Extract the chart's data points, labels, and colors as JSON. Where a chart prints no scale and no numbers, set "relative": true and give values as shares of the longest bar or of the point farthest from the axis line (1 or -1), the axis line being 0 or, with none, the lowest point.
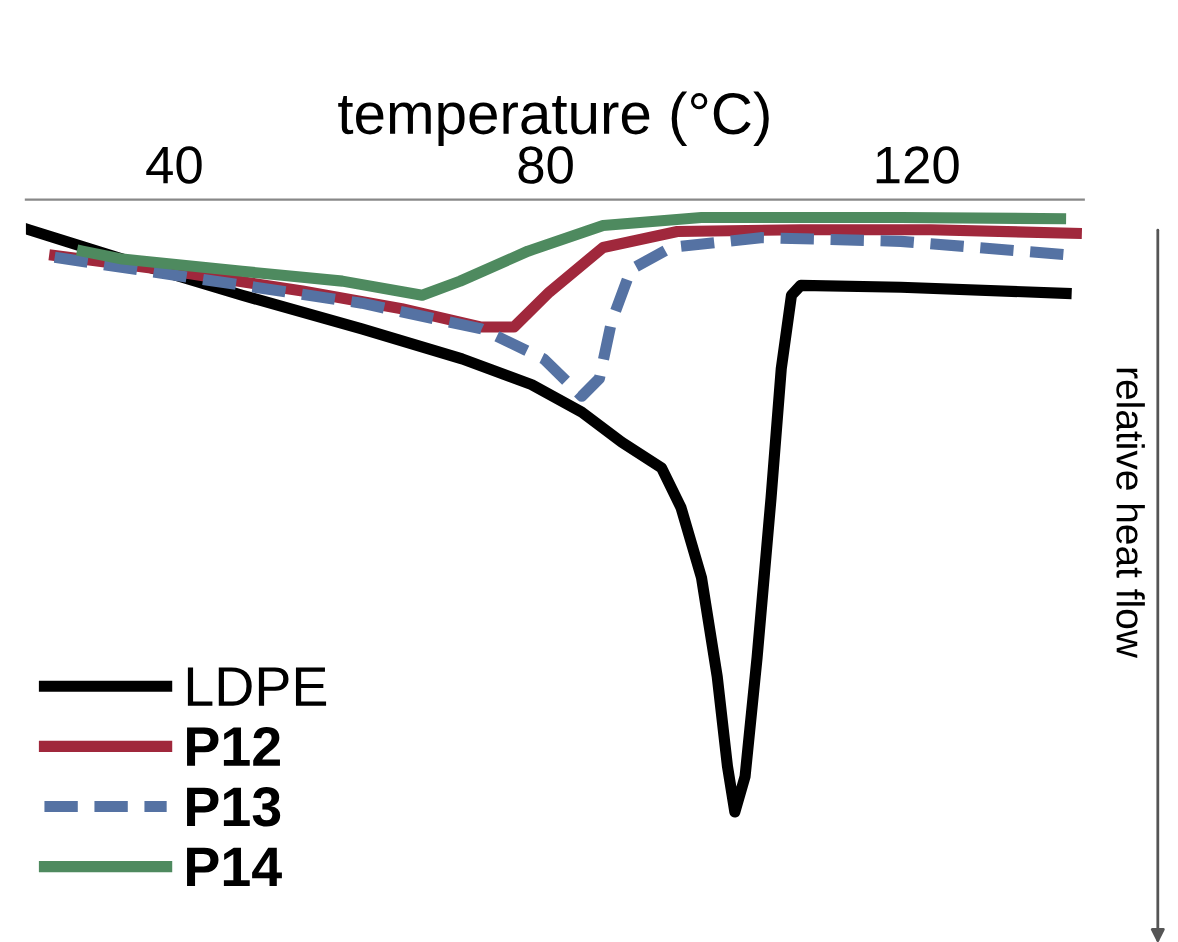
{
  "chart_data": {
    "type": "line",
    "xlabel": "temperature (°C)",
    "y2label": "relative heat flow",
    "relative": true,
    "xlim": [
      24,
      138
    ],
    "xticks": [
      40,
      80,
      120
    ],
    "tick_labels": "x",
    "grid": false,
    "legend": "bottom left",
    "series": [
      {
        "name": "LDPE",
        "color": "#000000",
        "line_style": "solid",
        "x": [
          24.3,
          34.4,
          47.3,
          60.2,
          71.0,
          78.5,
          83.9,
          88.2,
          92.5,
          94.6,
          96.8,
          98.5,
          99.6,
          100.4,
          101.5,
          102.8,
          104.3,
          105.4,
          106.5,
          107.5,
          118.3,
          136.1
        ],
        "values": [
          -0.049,
          -0.097,
          -0.156,
          -0.211,
          -0.26,
          -0.302,
          -0.347,
          -0.396,
          -0.438,
          -0.503,
          -0.617,
          -0.779,
          -0.925,
          -1,
          -0.942,
          -0.747,
          -0.487,
          -0.276,
          -0.156,
          -0.14,
          -0.143,
          -0.153
        ]
      },
      {
        "name": "P12",
        "color": "#a0283c",
        "line_style": "solid",
        "x": [
          27.1,
          38.7,
          53.8,
          64.5,
          73.1,
          76.6,
          80.4,
          86.2,
          94.2,
          107.5,
          121.5,
          137.2
        ],
        "values": [
          -0.091,
          -0.114,
          -0.149,
          -0.178,
          -0.208,
          -0.208,
          -0.151,
          -0.078,
          -0.052,
          -0.049,
          -0.049,
          -0.055
        ]
      },
      {
        "name": "P13",
        "color": "#5572a3",
        "line_style": "dashed",
        "x": [
          27.1,
          43.0,
          60.2,
          73.1,
          79.8,
          83.9,
          85.8,
          87.1,
          89.2,
          93.5,
          103.2,
          118.3,
          136.3
        ],
        "values": [
          -0.094,
          -0.13,
          -0.169,
          -0.211,
          -0.26,
          -0.321,
          -0.292,
          -0.2,
          -0.114,
          -0.078,
          -0.062,
          -0.068,
          -0.09
        ]
      },
      {
        "name": "P14",
        "color": "#4e8a5f",
        "line_style": "solid",
        "x": [
          30.1,
          34.4,
          47.3,
          58.1,
          66.7,
          70.8,
          78.1,
          86.2,
          96.8,
          118.3,
          135.5
        ],
        "values": [
          -0.084,
          -0.097,
          -0.117,
          -0.133,
          -0.156,
          -0.133,
          -0.084,
          -0.042,
          -0.029,
          -0.029,
          -0.031
        ]
      }
    ]
  }
}
